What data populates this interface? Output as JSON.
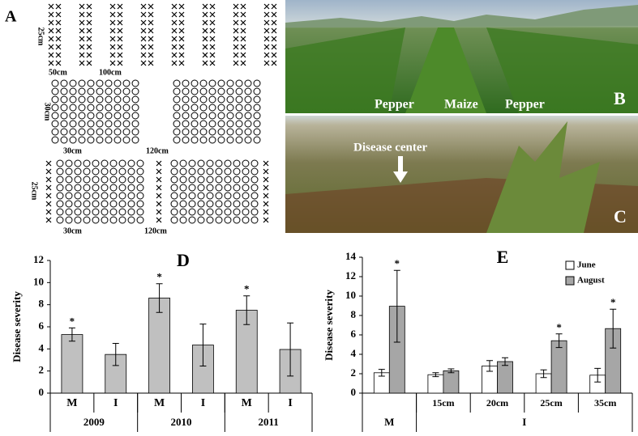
{
  "panel_a": {
    "label": "A",
    "texts": [
      "25cm",
      "50cm",
      "100cm",
      "30cm",
      "30cm",
      "120cm",
      "25cm",
      "30cm",
      "120cm"
    ]
  },
  "panel_b": {
    "label": "B",
    "texts": [
      "Pepper",
      "Maize",
      "Pepper"
    ]
  },
  "panel_c": {
    "label": "C",
    "annotation": "Disease center"
  },
  "chart_data": [
    {
      "type": "bar",
      "title": "D",
      "y_label": "Disease severity",
      "categories": [
        "M",
        "I",
        "M",
        "I",
        "M",
        "I"
      ],
      "groups": [
        {
          "label": "2009",
          "size": 2
        },
        {
          "label": "2010",
          "size": 2
        },
        {
          "label": "2011",
          "size": 2
        }
      ],
      "values": [
        5.3,
        3.5,
        8.6,
        4.35,
        7.5,
        3.95
      ],
      "errors": [
        0.6,
        1.0,
        1.3,
        1.9,
        1.3,
        2.4
      ],
      "significance": [
        "*",
        null,
        "*",
        null,
        "*",
        null
      ],
      "color": "#c0c0c0",
      "ylim": [
        0,
        12
      ],
      "yticks": [
        0,
        2,
        4,
        6,
        8,
        10,
        12
      ]
    },
    {
      "type": "bar",
      "title": "E",
      "y_label": "Disease severity",
      "categories": [
        null,
        "15cm",
        "20cm",
        "25cm",
        "35cm"
      ],
      "groups": [
        {
          "label": "M",
          "size": 1
        },
        {
          "label": "I",
          "size": 4
        }
      ],
      "series": [
        {
          "name": "June",
          "color": "#ffffff",
          "values": [
            2.1,
            1.9,
            2.8,
            2.0,
            1.85
          ],
          "errors": [
            0.35,
            0.2,
            0.55,
            0.4,
            0.7
          ],
          "significance": [
            null,
            null,
            null,
            null,
            null
          ]
        },
        {
          "name": "August",
          "color": "#a6a6a6",
          "values": [
            8.95,
            2.3,
            3.25,
            5.4,
            6.65
          ],
          "errors": [
            3.7,
            0.2,
            0.4,
            0.7,
            2.0
          ],
          "significance": [
            "*",
            null,
            null,
            "*",
            "*"
          ]
        }
      ],
      "legend": "upper right",
      "ylim": [
        0,
        14
      ],
      "yticks": [
        0,
        2,
        4,
        6,
        8,
        10,
        12,
        14
      ]
    }
  ]
}
